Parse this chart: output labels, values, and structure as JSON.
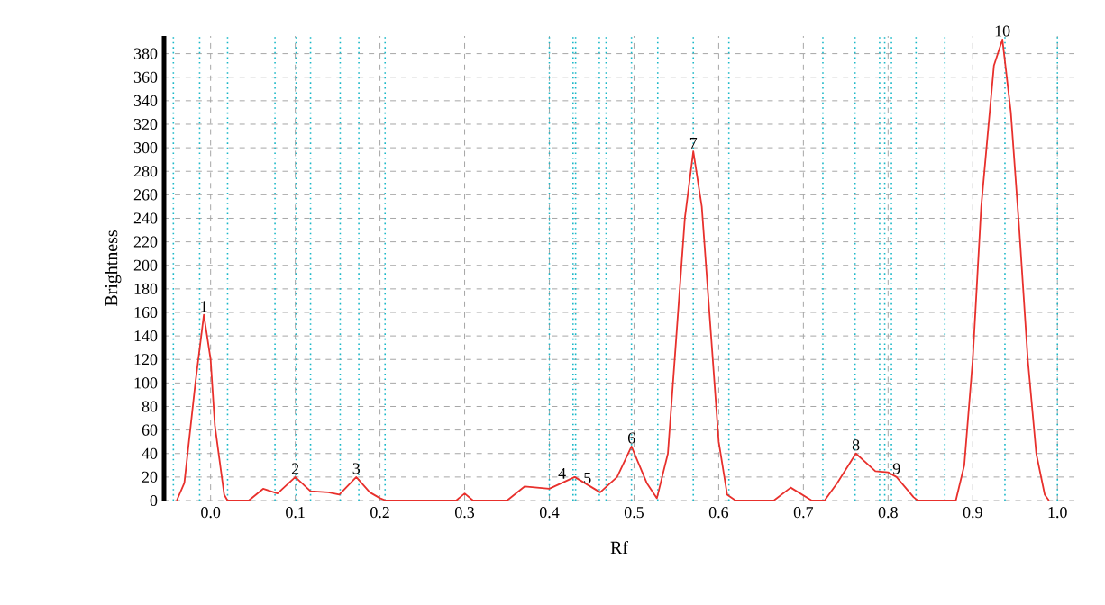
{
  "chart_data": {
    "type": "line",
    "xlabel": "Rf",
    "ylabel": "Brightness",
    "x": [
      -0.04,
      -0.031,
      -0.018,
      -0.008,
      0.0,
      0.005,
      0.016,
      0.02,
      0.045,
      0.062,
      0.079,
      0.1,
      0.118,
      0.139,
      0.152,
      0.172,
      0.188,
      0.2,
      0.207,
      0.29,
      0.3,
      0.31,
      0.35,
      0.371,
      0.4,
      0.43,
      0.46,
      0.48,
      0.497,
      0.515,
      0.527,
      0.54,
      0.55,
      0.56,
      0.57,
      0.58,
      0.59,
      0.6,
      0.61,
      0.62,
      0.665,
      0.685,
      0.71,
      0.725,
      0.74,
      0.762,
      0.785,
      0.8,
      0.81,
      0.83,
      0.835,
      0.88,
      0.89,
      0.9,
      0.91,
      0.925,
      0.935,
      0.945,
      0.955,
      0.965,
      0.975,
      0.985,
      0.99
    ],
    "series": [
      {
        "color": "#e8302c",
        "values": [
          0,
          15,
          100,
          158,
          120,
          64,
          5,
          0,
          0,
          10,
          6,
          20,
          8,
          7,
          5,
          20,
          7,
          2,
          0,
          0,
          6,
          0,
          0,
          12,
          10,
          20,
          7,
          20,
          46,
          15,
          2,
          40,
          140,
          240,
          297,
          250,
          150,
          50,
          5,
          0,
          0,
          11,
          0,
          0,
          15,
          40,
          25,
          24,
          20,
          3,
          0,
          0,
          30,
          120,
          250,
          370,
          392,
          330,
          230,
          120,
          40,
          5,
          0
        ]
      }
    ],
    "xlim": [
      -0.055,
      1.02
    ],
    "ylim": [
      0,
      395
    ],
    "xticks": [
      {
        "value": 0,
        "label": "0.0"
      },
      0.1,
      0.2,
      0.3,
      0.4,
      0.5,
      0.6,
      0.7,
      0.8,
      0.9,
      {
        "value": 1,
        "label": "1.0"
      }
    ],
    "yticks": [
      0,
      20,
      40,
      60,
      80,
      100,
      120,
      140,
      160,
      180,
      200,
      220,
      240,
      260,
      280,
      300,
      320,
      340,
      360,
      380
    ],
    "grid": true,
    "marker": "none",
    "line_style": "solid",
    "annotations": [
      {
        "text": "1",
        "x": -0.008,
        "y": 158
      },
      {
        "text": "2",
        "x": 0.1,
        "y": 20
      },
      {
        "text": "3",
        "x": 0.172,
        "y": 20
      },
      {
        "text": "4",
        "x": 0.415,
        "y": 16
      },
      {
        "text": "5",
        "x": 0.445,
        "y": 12
      },
      {
        "text": "6",
        "x": 0.497,
        "y": 46
      },
      {
        "text": "7",
        "x": 0.57,
        "y": 297
      },
      {
        "text": "8",
        "x": 0.762,
        "y": 40
      },
      {
        "text": "9",
        "x": 0.81,
        "y": 20
      },
      {
        "text": "10",
        "x": 0.935,
        "y": 392
      }
    ],
    "ref_lines": [
      {
        "axis": "x",
        "value": -0.044,
        "color": "#1ab8c8",
        "line_style": "dotted"
      },
      {
        "axis": "x",
        "value": -0.013,
        "color": "#1ab8c8",
        "line_style": "dotted"
      },
      {
        "axis": "x",
        "value": 0.02,
        "color": "#1ab8c8",
        "line_style": "dotted"
      },
      {
        "axis": "x",
        "value": 0.076,
        "color": "#1ab8c8",
        "line_style": "dotted"
      },
      {
        "axis": "x",
        "value": 0.101,
        "color": "#1ab8c8",
        "line_style": "dotted"
      },
      {
        "axis": "x",
        "value": 0.118,
        "color": "#1ab8c8",
        "line_style": "dotted"
      },
      {
        "axis": "x",
        "value": 0.153,
        "color": "#1ab8c8",
        "line_style": "dotted"
      },
      {
        "axis": "x",
        "value": 0.175,
        "color": "#1ab8c8",
        "line_style": "dotted"
      },
      {
        "axis": "x",
        "value": 0.206,
        "color": "#1ab8c8",
        "line_style": "dotted"
      },
      {
        "axis": "x",
        "value": 0.4,
        "color": "#1ab8c8",
        "line_style": "dotted"
      },
      {
        "axis": "x",
        "value": 0.428,
        "color": "#1ab8c8",
        "line_style": "dotted"
      },
      {
        "axis": "x",
        "value": 0.431,
        "color": "#1ab8c8",
        "line_style": "dotted"
      },
      {
        "axis": "x",
        "value": 0.459,
        "color": "#1ab8c8",
        "line_style": "dotted"
      },
      {
        "axis": "x",
        "value": 0.467,
        "color": "#1ab8c8",
        "line_style": "dotted"
      },
      {
        "axis": "x",
        "value": 0.497,
        "color": "#1ab8c8",
        "line_style": "dotted"
      },
      {
        "axis": "x",
        "value": 0.528,
        "color": "#1ab8c8",
        "line_style": "dotted"
      },
      {
        "axis": "x",
        "value": 0.57,
        "color": "#1ab8c8",
        "line_style": "dotted"
      },
      {
        "axis": "x",
        "value": 0.612,
        "color": "#1ab8c8",
        "line_style": "dotted"
      },
      {
        "axis": "x",
        "value": 0.723,
        "color": "#1ab8c8",
        "line_style": "dotted"
      },
      {
        "axis": "x",
        "value": 0.761,
        "color": "#1ab8c8",
        "line_style": "dotted"
      },
      {
        "axis": "x",
        "value": 0.79,
        "color": "#1ab8c8",
        "line_style": "dotted"
      },
      {
        "axis": "x",
        "value": 0.796,
        "color": "#1ab8c8",
        "line_style": "dotted"
      },
      {
        "axis": "x",
        "value": 0.804,
        "color": "#1ab8c8",
        "line_style": "dotted"
      },
      {
        "axis": "x",
        "value": 0.833,
        "color": "#1ab8c8",
        "line_style": "dotted"
      },
      {
        "axis": "x",
        "value": 0.867,
        "color": "#1ab8c8",
        "line_style": "dotted"
      },
      {
        "axis": "x",
        "value": 0.938,
        "color": "#1ab8c8",
        "line_style": "dotted"
      },
      {
        "axis": "x",
        "value": 1.0,
        "color": "#1ab8c8",
        "line_style": "dotted"
      }
    ]
  }
}
